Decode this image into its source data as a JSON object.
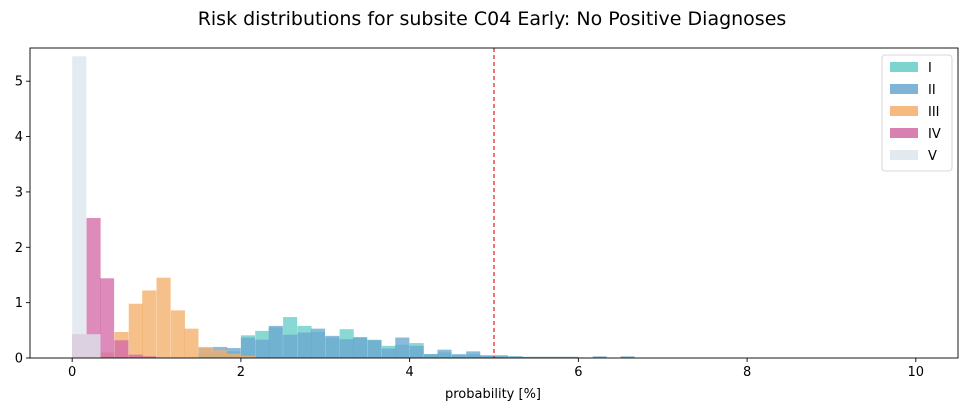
{
  "chart_data": {
    "type": "histogram",
    "title": "Risk distributions  for subsite C04 Early: No Positive Diagnoses",
    "xlabel": "probability [%]",
    "ylabel": "",
    "xlim": [
      -0.5,
      10.5
    ],
    "ylim": [
      0,
      5.6
    ],
    "xticks": [
      0,
      2,
      4,
      6,
      8,
      10
    ],
    "yticks": [
      0,
      1,
      2,
      3,
      4,
      5
    ],
    "bin_width": 0.167,
    "grid": false,
    "legend_position": "top-right",
    "threshold_line": {
      "x": 5.0,
      "color": "#e41a1c",
      "style": "dashed"
    },
    "series": [
      {
        "name": "I",
        "color": "#66cdc6",
        "bins": [
          [
            1.5,
            0.08
          ],
          [
            1.67,
            0.1
          ],
          [
            1.83,
            0.12
          ],
          [
            2.0,
            0.41
          ],
          [
            2.17,
            0.49
          ],
          [
            2.33,
            0.55
          ],
          [
            2.5,
            0.74
          ],
          [
            2.67,
            0.58
          ],
          [
            2.83,
            0.47
          ],
          [
            3.0,
            0.37
          ],
          [
            3.17,
            0.52
          ],
          [
            3.33,
            0.38
          ],
          [
            3.5,
            0.33
          ],
          [
            3.67,
            0.22
          ],
          [
            3.83,
            0.24
          ],
          [
            4.0,
            0.27
          ],
          [
            4.17,
            0.07
          ],
          [
            4.33,
            0.1
          ],
          [
            4.5,
            0.05
          ],
          [
            4.67,
            0.07
          ],
          [
            4.83,
            0.04
          ],
          [
            5.0,
            0.03
          ],
          [
            5.17,
            0.03
          ],
          [
            5.33,
            0.02
          ],
          [
            5.5,
            0.02
          ],
          [
            5.67,
            0.02
          ],
          [
            5.83,
            0.02
          ],
          [
            6.0,
            0.01
          ]
        ]
      },
      {
        "name": "II",
        "color": "#6aa6cf",
        "bins": [
          [
            1.5,
            0.18
          ],
          [
            1.67,
            0.2
          ],
          [
            1.83,
            0.18
          ],
          [
            2.0,
            0.37
          ],
          [
            2.17,
            0.33
          ],
          [
            2.33,
            0.58
          ],
          [
            2.5,
            0.42
          ],
          [
            2.67,
            0.46
          ],
          [
            2.83,
            0.53
          ],
          [
            3.0,
            0.4
          ],
          [
            3.17,
            0.34
          ],
          [
            3.33,
            0.37
          ],
          [
            3.5,
            0.32
          ],
          [
            3.67,
            0.17
          ],
          [
            3.83,
            0.37
          ],
          [
            4.0,
            0.22
          ],
          [
            4.17,
            0.07
          ],
          [
            4.33,
            0.15
          ],
          [
            4.5,
            0.07
          ],
          [
            4.67,
            0.12
          ],
          [
            4.83,
            0.05
          ],
          [
            5.0,
            0.05
          ],
          [
            5.17,
            0.03
          ],
          [
            5.33,
            0.02
          ],
          [
            5.5,
            0.02
          ],
          [
            5.67,
            0.02
          ],
          [
            5.83,
            0.02
          ],
          [
            6.17,
            0.03
          ],
          [
            6.5,
            0.03
          ]
        ]
      },
      {
        "name": "III",
        "color": "#f4ae6a",
        "bins": [
          [
            0.33,
            0.1
          ],
          [
            0.5,
            0.47
          ],
          [
            0.67,
            0.98
          ],
          [
            0.83,
            1.22
          ],
          [
            1.0,
            1.45
          ],
          [
            1.17,
            0.86
          ],
          [
            1.33,
            0.53
          ],
          [
            1.5,
            0.2
          ],
          [
            1.67,
            0.14
          ],
          [
            1.83,
            0.08
          ],
          [
            2.0,
            0.04
          ]
        ]
      },
      {
        "name": "IV",
        "color": "#d26aa6",
        "bins": [
          [
            0.0,
            0.43
          ],
          [
            0.17,
            2.53
          ],
          [
            0.33,
            1.44
          ],
          [
            0.5,
            0.32
          ],
          [
            0.67,
            0.06
          ],
          [
            0.83,
            0.03
          ]
        ]
      },
      {
        "name": "V",
        "color": "#dde5ec",
        "bins": [
          [
            0.0,
            5.45
          ],
          [
            0.17,
            0.43
          ]
        ]
      }
    ]
  }
}
